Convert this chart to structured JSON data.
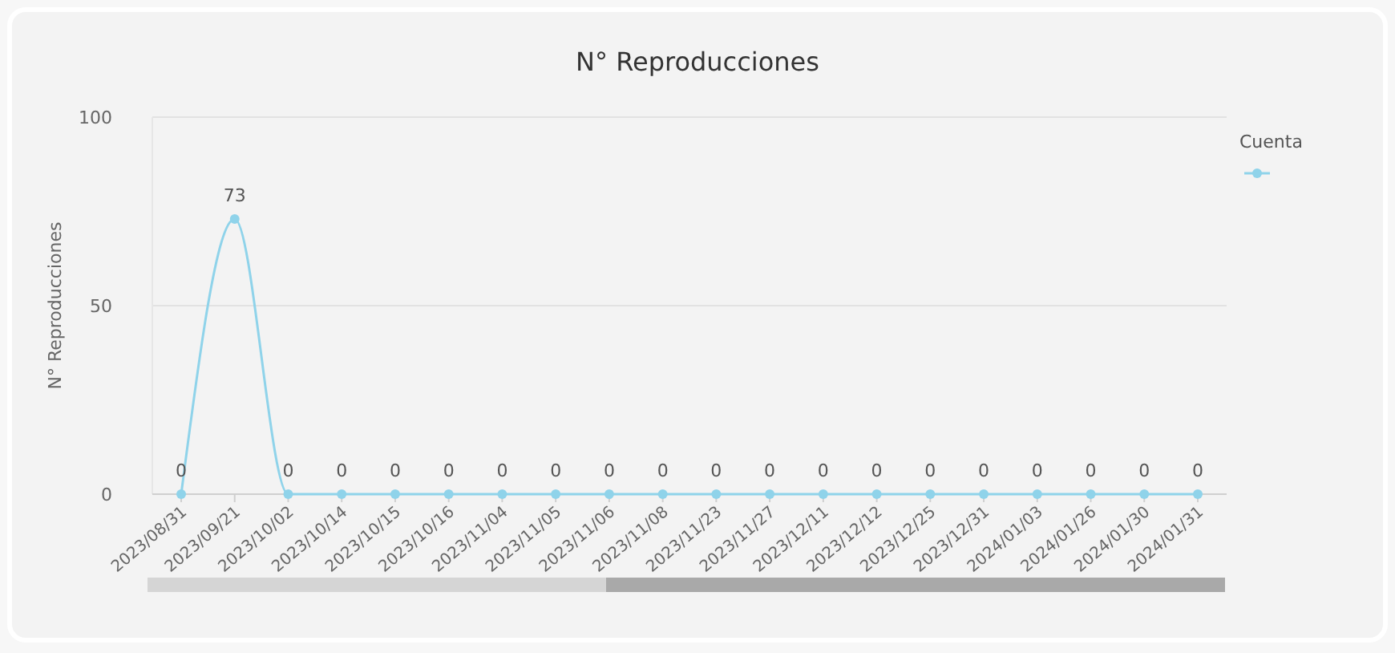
{
  "chart_data": {
    "type": "line",
    "title": "N° Reproducciones",
    "ylabel": "N° Reproducciones",
    "legend_title": "Cuenta",
    "categories": [
      "2023/08/31",
      "2023/09/21",
      "2023/10/02",
      "2023/10/14",
      "2023/10/15",
      "2023/10/16",
      "2023/11/04",
      "2023/11/05",
      "2023/11/06",
      "2023/11/08",
      "2023/11/23",
      "2023/11/27",
      "2023/12/11",
      "2023/12/12",
      "2023/12/25",
      "2023/12/31",
      "2024/01/03",
      "2024/01/26",
      "2024/01/30",
      "2024/01/31"
    ],
    "series": [
      {
        "color": "#8fd3ea",
        "values": [
          0,
          73,
          0,
          0,
          0,
          0,
          0,
          0,
          0,
          0,
          0,
          0,
          0,
          0,
          0,
          0,
          0,
          0,
          0,
          0
        ]
      }
    ],
    "ylim": [
      0,
      100
    ],
    "yticks": [
      0,
      50,
      100
    ],
    "grid": "y",
    "marker": "circle",
    "data_labels": true
  }
}
